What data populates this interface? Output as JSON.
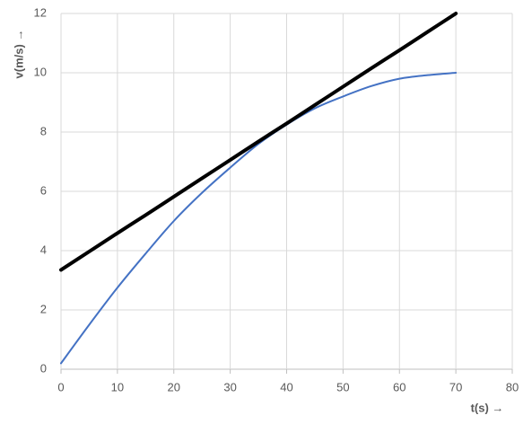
{
  "chart_data": {
    "type": "line",
    "x_label": "t(s) →",
    "y_label": "v(m/s) →",
    "x": [
      0,
      5,
      10,
      15,
      20,
      25,
      30,
      35,
      40,
      45,
      50,
      55,
      60,
      65,
      70
    ],
    "series": [
      {
        "color": "#4472c4",
        "width": 2,
        "values": [
          0.2,
          1.5,
          2.75,
          3.9,
          5.0,
          5.95,
          6.8,
          7.6,
          8.25,
          8.8,
          9.2,
          9.55,
          9.8,
          9.92,
          10
        ]
      },
      {
        "color": "#000000",
        "width": 4,
        "values": [
          3.35,
          3.97,
          4.59,
          5.2,
          5.82,
          6.44,
          7.06,
          7.68,
          8.29,
          8.91,
          9.53,
          10.15,
          10.76,
          11.38,
          12
        ]
      }
    ],
    "xlim": [
      0,
      80
    ],
    "xticks": [
      0,
      10,
      20,
      30,
      40,
      50,
      60,
      70,
      80
    ],
    "ylim": [
      0,
      12
    ],
    "yticks": [
      0,
      2,
      4,
      6,
      8,
      10,
      12
    ],
    "grid": true
  }
}
